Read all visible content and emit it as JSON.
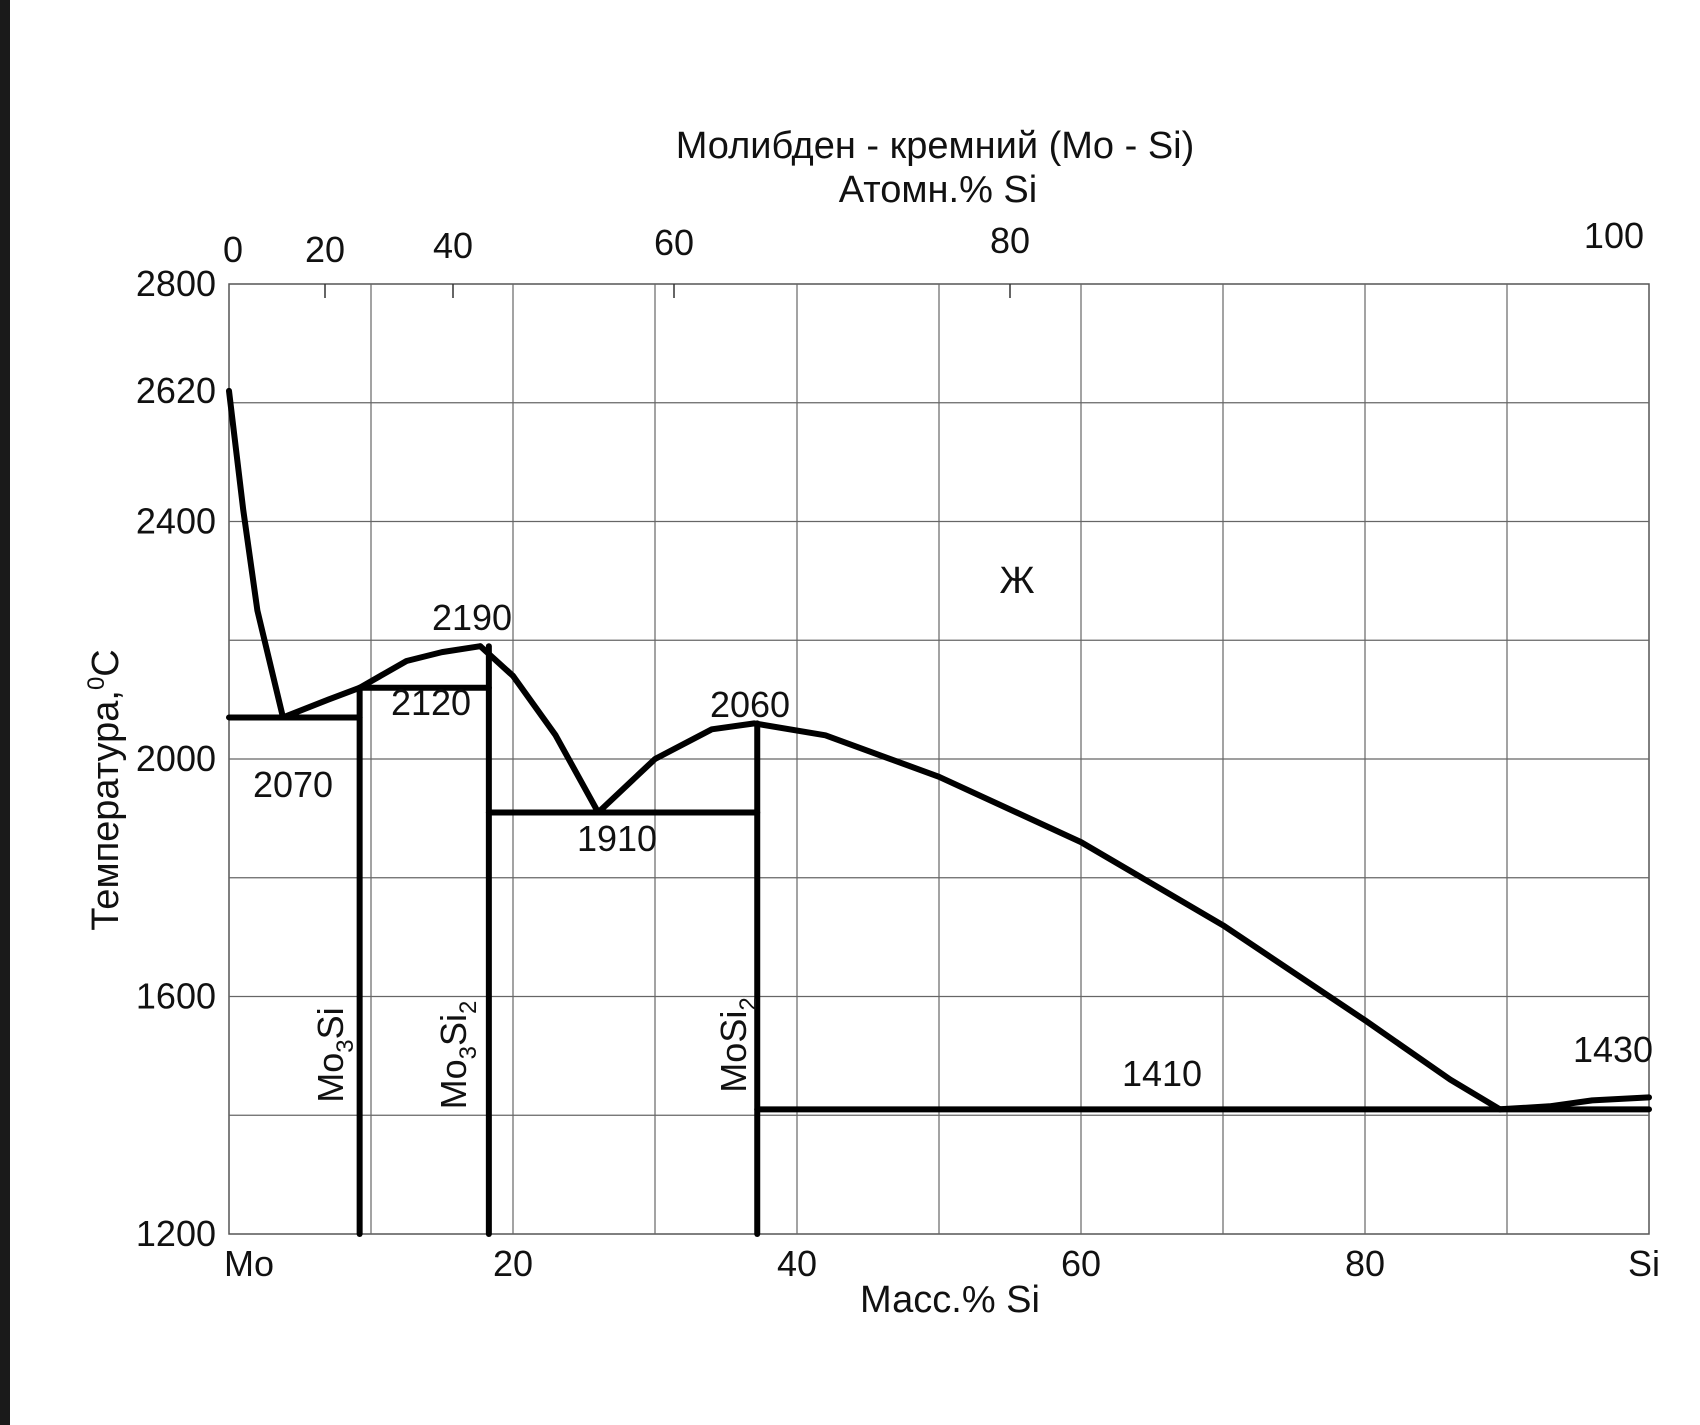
{
  "chart_data": {
    "type": "line",
    "title": "Молибден - кремний (Mo - Si)",
    "top_axis": {
      "label": "Атомн.% Si",
      "ticks": [
        "0",
        "20",
        "40",
        "60",
        "80",
        "100"
      ]
    },
    "x_axis": {
      "label": "Масс.% Si",
      "ticks": [
        "Mo",
        "20",
        "40",
        "60",
        "80",
        "Si"
      ],
      "range": [
        0,
        100
      ]
    },
    "y_axis": {
      "label_main": "Температура,",
      "label_sup": "0",
      "label_unit": "C",
      "ticks": [
        "1200",
        "1600",
        "2000",
        "2400",
        "2620",
        "2800"
      ],
      "range": [
        1200,
        2800
      ]
    },
    "grid": true,
    "region_label": "Ж",
    "series": [
      {
        "id": "liquidus-mo",
        "points": [
          [
            0,
            2620
          ],
          [
            1,
            2420
          ],
          [
            2,
            2250
          ],
          [
            3.8,
            2070
          ]
        ]
      },
      {
        "id": "liquidus-mo3si-mo5si3",
        "points": [
          [
            3.8,
            2070
          ],
          [
            7,
            2100
          ],
          [
            9.2,
            2120
          ],
          [
            12.5,
            2165
          ],
          [
            15,
            2180
          ],
          [
            17.7,
            2190
          ]
        ]
      },
      {
        "id": "liquidus-mo5si3-eutectic",
        "points": [
          [
            17.7,
            2190
          ],
          [
            20,
            2140
          ],
          [
            23,
            2040
          ],
          [
            26,
            1910
          ]
        ]
      },
      {
        "id": "liquidus-mosi2",
        "points": [
          [
            26,
            1910
          ],
          [
            30,
            2000
          ],
          [
            34,
            2050
          ],
          [
            37,
            2060
          ],
          [
            42,
            2040
          ],
          [
            50,
            1970
          ],
          [
            60,
            1860
          ],
          [
            70,
            1720
          ],
          [
            80,
            1560
          ],
          [
            86,
            1460
          ],
          [
            89.5,
            1410
          ]
        ]
      },
      {
        "id": "liquidus-si",
        "points": [
          [
            89.5,
            1410
          ],
          [
            93,
            1415
          ],
          [
            96,
            1425
          ],
          [
            100,
            1430
          ]
        ]
      }
    ],
    "isotherms": [
      {
        "id": "eutectic-2070",
        "temp": 2070,
        "x_range": [
          0,
          9.2
        ]
      },
      {
        "id": "peritectic-2120",
        "temp": 2120,
        "x_range": [
          9.2,
          18.3
        ]
      },
      {
        "id": "eutectic-1910",
        "temp": 1910,
        "x_range": [
          18.3,
          37.2
        ]
      },
      {
        "id": "eutectic-1410",
        "temp": 1410,
        "x_range": [
          37.2,
          100
        ]
      }
    ],
    "phase_lines": [
      {
        "id": "Mo3Si",
        "x": 9.2,
        "t_top": 2120
      },
      {
        "id": "Mo5Si3",
        "x": 18.3,
        "t_top": 2190
      },
      {
        "id": "MoSi2",
        "x": 37.2,
        "t_top": 2060
      }
    ],
    "phase_labels": [
      {
        "main": "Mo",
        "sub1": "3",
        "mid": "Si",
        "sub2": ""
      },
      {
        "main": "Mo",
        "sub1": "3",
        "mid": "Si",
        "sub2": "2"
      },
      {
        "main": "",
        "sub1": "",
        "mid": "MoSi",
        "sub2": "2"
      }
    ],
    "annotations": {
      "t2190": "2190",
      "t2120": "2120",
      "t2070": "2070",
      "t2060": "2060",
      "t1910": "1910",
      "t1410": "1410",
      "t1430": "1430"
    }
  }
}
